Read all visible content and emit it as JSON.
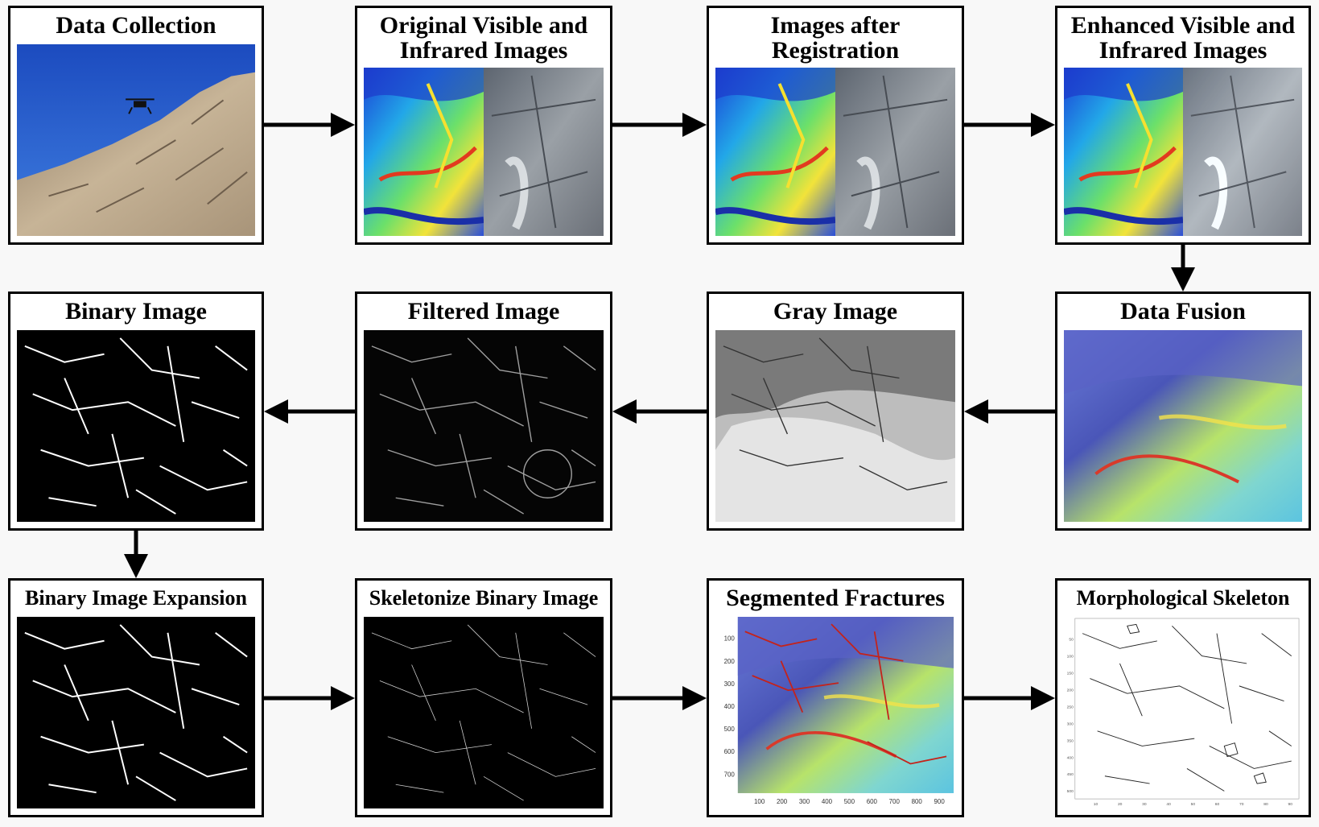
{
  "boxes": [
    {
      "id": "data-collection",
      "title": [
        "Data Collection"
      ]
    },
    {
      "id": "original-images",
      "title": [
        "Original Visible and",
        "Infrared Images"
      ]
    },
    {
      "id": "images-registration",
      "title": [
        "Images after",
        "Registration"
      ]
    },
    {
      "id": "enhanced-images",
      "title": [
        "Enhanced Visible and",
        "Infrared Images"
      ]
    },
    {
      "id": "data-fusion",
      "title": [
        "Data Fusion"
      ]
    },
    {
      "id": "gray-image",
      "title": [
        "Gray Image"
      ]
    },
    {
      "id": "filtered-image",
      "title": [
        "Filtered Image"
      ]
    },
    {
      "id": "binary-image",
      "title": [
        "Binary Image"
      ]
    },
    {
      "id": "binary-expansion",
      "title": [
        "Binary Image Expansion"
      ]
    },
    {
      "id": "skeletonize",
      "title": [
        "Skeletonize Binary Image"
      ]
    },
    {
      "id": "segmented-fractures",
      "title": [
        "Segmented Fractures"
      ]
    },
    {
      "id": "morph-skeleton",
      "title": [
        "Morphological Skeleton"
      ]
    }
  ],
  "segmented_axes": {
    "y_ticks": [
      "100",
      "200",
      "300",
      "400",
      "500",
      "600",
      "700"
    ],
    "x_ticks": [
      "100",
      "200",
      "300",
      "400",
      "500",
      "600",
      "700",
      "800",
      "900"
    ]
  },
  "skeleton_axes": {
    "y_ticks": [
      "50",
      "100",
      "150",
      "200",
      "250",
      "300",
      "350",
      "400",
      "450",
      "500"
    ],
    "x_ticks": [
      "10",
      "20",
      "30",
      "40",
      "50",
      "60",
      "70",
      "80",
      "90"
    ]
  },
  "colors": {
    "border": "#000000",
    "sky": "#2a5fc8",
    "rock": "#b9a58c"
  }
}
